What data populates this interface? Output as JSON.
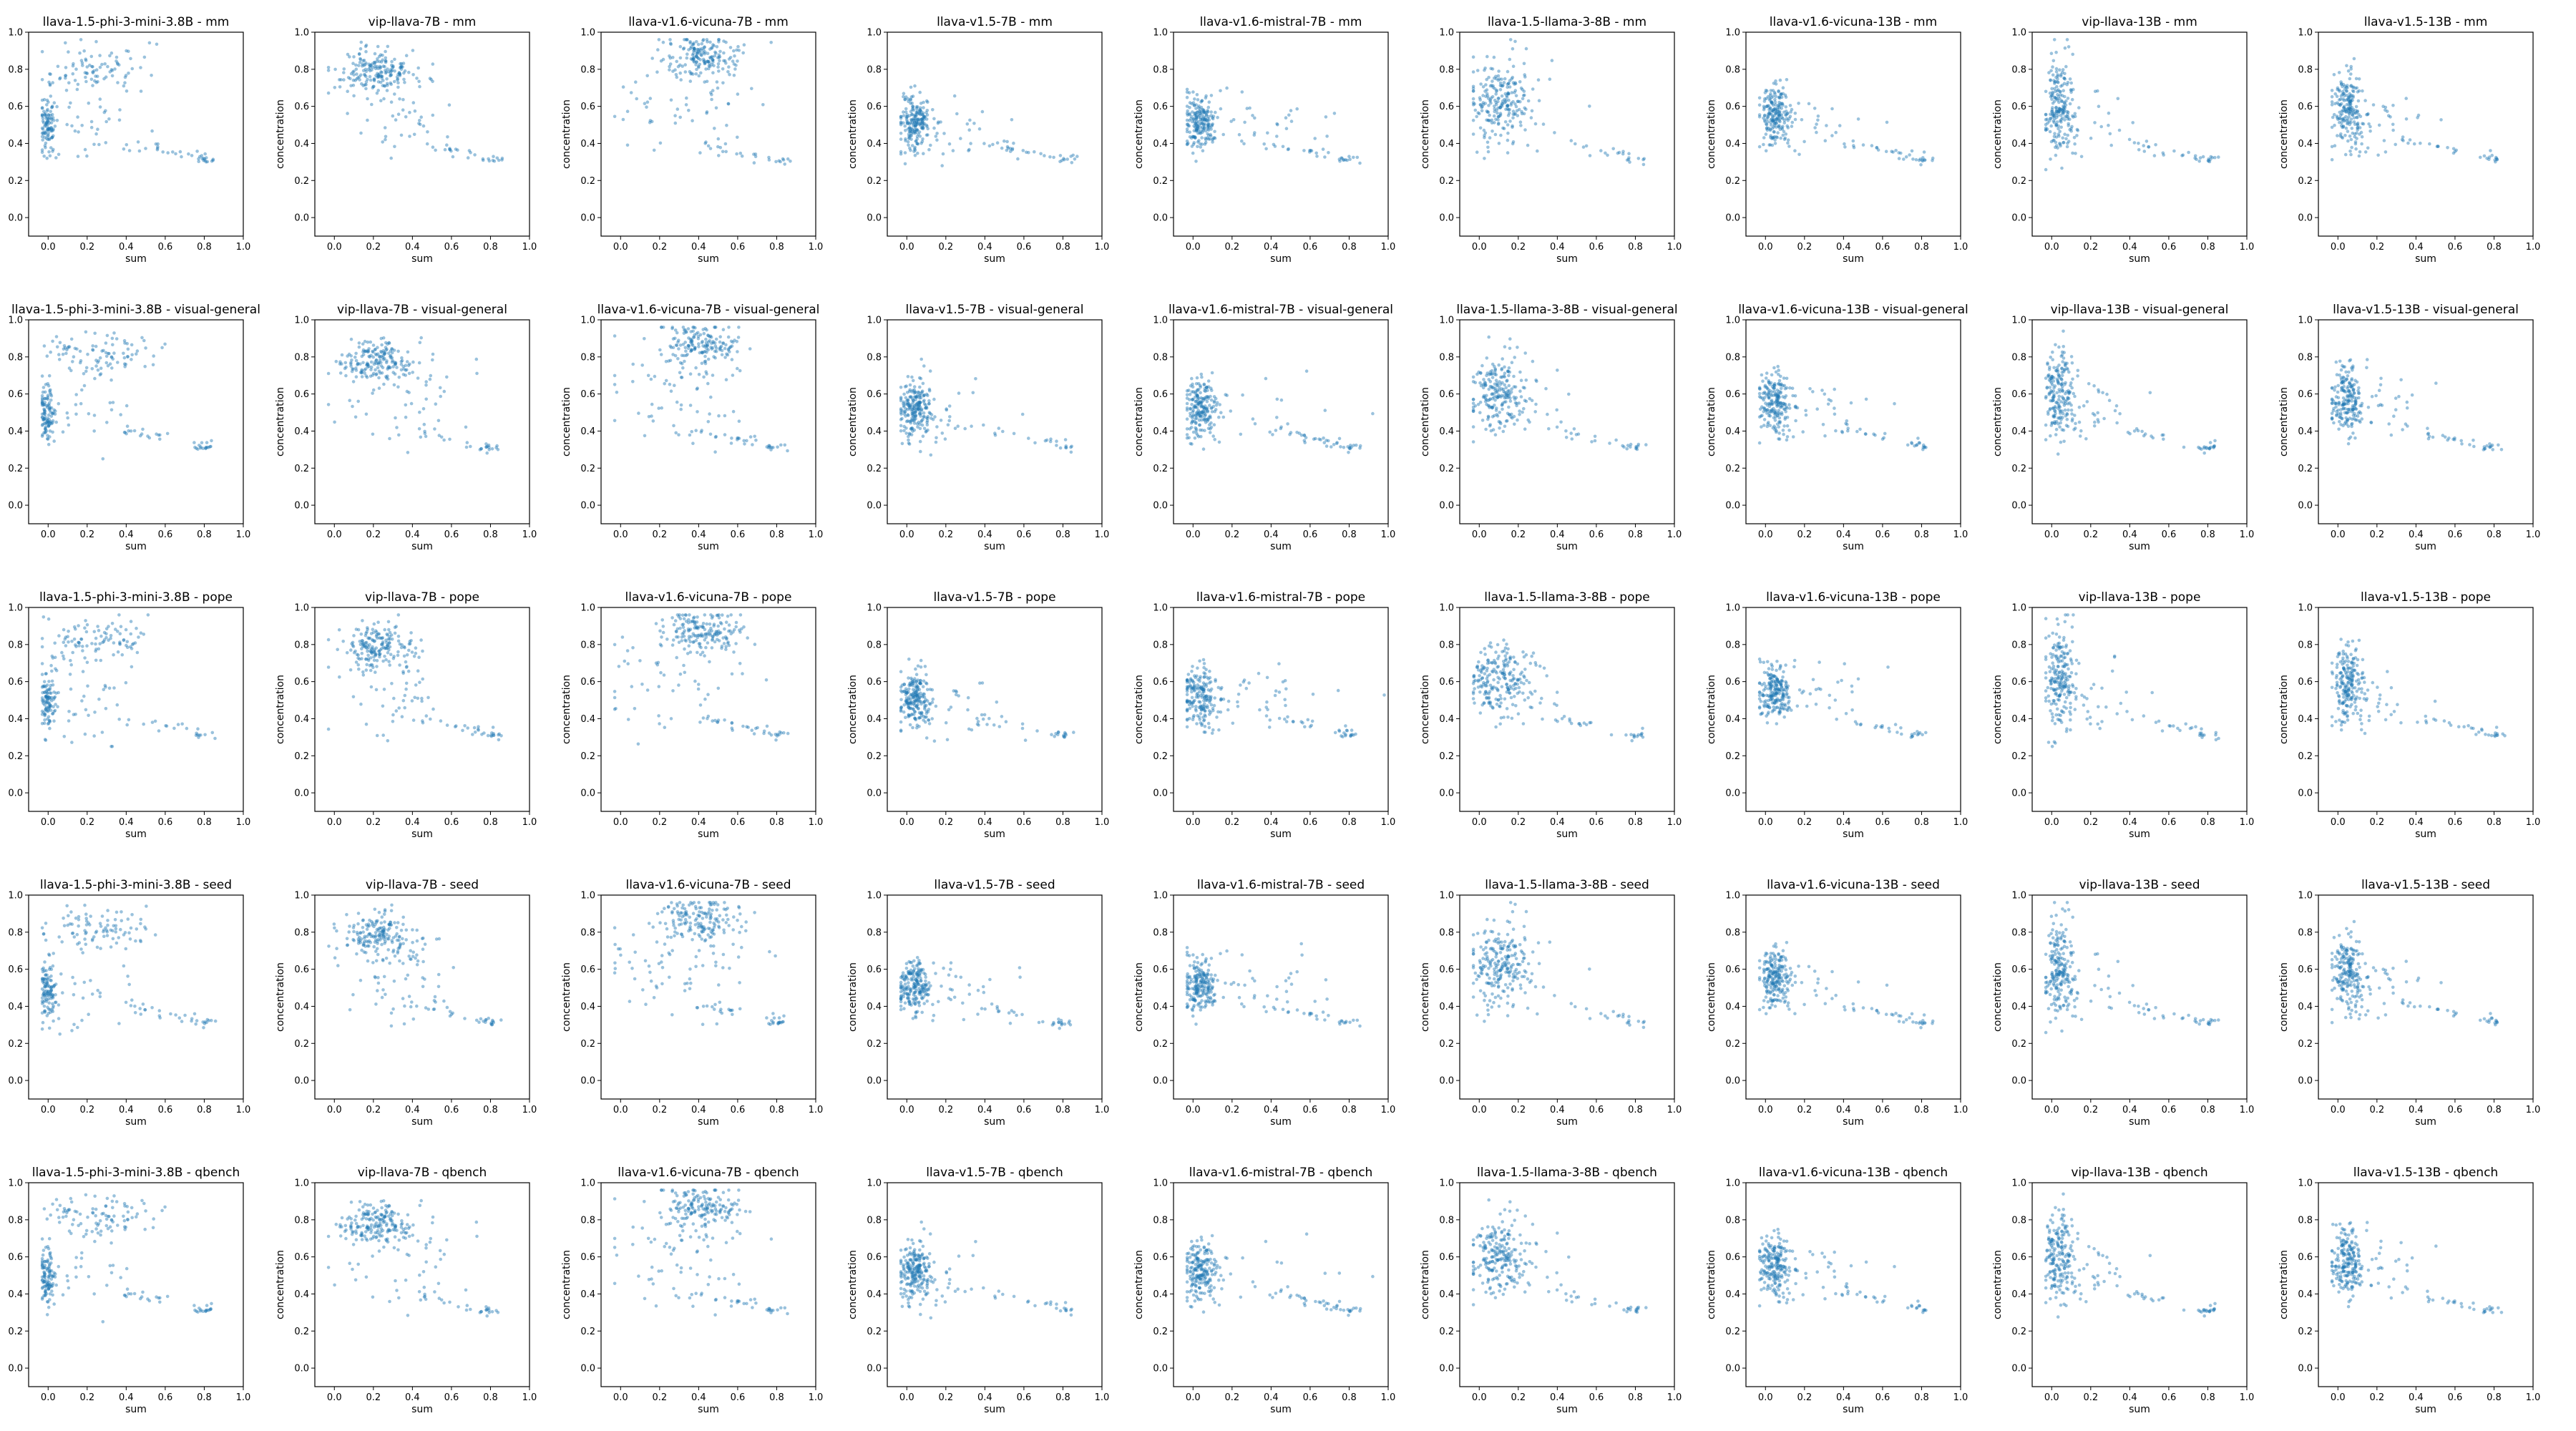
{
  "figure": {
    "models": [
      "llava-1.5-phi-3-mini-3.8B",
      "vip-llava-7B",
      "llava-v1.6-vicuna-7B",
      "llava-v1.5-7B",
      "llava-v1.6-mistral-7B",
      "llava-1.5-llama-3-8B",
      "llava-v1.6-vicuna-13B",
      "vip-llava-13B",
      "llava-v1.5-13B"
    ],
    "datasets": [
      "mm",
      "visual-general",
      "pope",
      "seed",
      "qbench"
    ],
    "title_separator": " - ",
    "point_color": "#1f77b4"
  },
  "chart_data": {
    "type": "scatter",
    "layout": "grid of 5 rows (datasets) x 9 columns (models), one scatter panel per dataset-model pair",
    "xlabel": "sum",
    "ylabel": "concentration",
    "xlim": [
      -0.1,
      1.0
    ],
    "ylim": [
      -0.1,
      1.0
    ],
    "xticks": [
      0.0,
      0.2,
      0.4,
      0.6,
      0.8,
      1.0
    ],
    "yticks": [
      0.0,
      0.2,
      0.4,
      0.6,
      0.8,
      1.0
    ],
    "grid": false,
    "legend": "none",
    "marker": "small translucent circles, single series per panel",
    "panel_clusters": {
      "llava-1.5-phi-3-mini-3.8B": [
        {
          "x": 0.0,
          "y": 0.5,
          "sx": 0.02,
          "sy": 0.08,
          "w": 0.35
        },
        {
          "x": 0.25,
          "y": 0.82,
          "sx": 0.13,
          "sy": 0.06,
          "w": 0.4
        },
        {
          "x": 0.2,
          "y": 0.5,
          "sx": 0.12,
          "sy": 0.12,
          "w": 0.15
        }
      ],
      "vip-llava-7B": [
        {
          "x": 0.22,
          "y": 0.78,
          "sx": 0.09,
          "sy": 0.06,
          "w": 0.8
        },
        {
          "x": 0.35,
          "y": 0.55,
          "sx": 0.15,
          "sy": 0.12,
          "w": 0.2
        }
      ],
      "llava-v1.6-vicuna-7B": [
        {
          "x": 0.42,
          "y": 0.87,
          "sx": 0.1,
          "sy": 0.06,
          "w": 0.7
        },
        {
          "x": 0.3,
          "y": 0.62,
          "sx": 0.18,
          "sy": 0.15,
          "w": 0.3
        }
      ],
      "llava-v1.5-7B": [
        {
          "x": 0.04,
          "y": 0.52,
          "sx": 0.04,
          "sy": 0.07,
          "w": 0.85
        },
        {
          "x": 0.2,
          "y": 0.45,
          "sx": 0.15,
          "sy": 0.08,
          "w": 0.15
        }
      ],
      "llava-v1.6-mistral-7B": [
        {
          "x": 0.04,
          "y": 0.52,
          "sx": 0.04,
          "sy": 0.08,
          "w": 0.8
        },
        {
          "x": 0.3,
          "y": 0.5,
          "sx": 0.25,
          "sy": 0.08,
          "w": 0.2
        }
      ],
      "llava-1.5-llama-3-8B": [
        {
          "x": 0.1,
          "y": 0.62,
          "sx": 0.07,
          "sy": 0.1,
          "w": 0.9
        },
        {
          "x": 0.25,
          "y": 0.55,
          "sx": 0.12,
          "sy": 0.1,
          "w": 0.1
        }
      ],
      "llava-v1.6-vicuna-13B": [
        {
          "x": 0.05,
          "y": 0.55,
          "sx": 0.04,
          "sy": 0.08,
          "w": 0.85
        },
        {
          "x": 0.25,
          "y": 0.52,
          "sx": 0.15,
          "sy": 0.08,
          "w": 0.15
        }
      ],
      "vip-llava-13B": [
        {
          "x": 0.04,
          "y": 0.62,
          "sx": 0.035,
          "sy": 0.13,
          "w": 0.85
        },
        {
          "x": 0.2,
          "y": 0.5,
          "sx": 0.12,
          "sy": 0.08,
          "w": 0.15
        }
      ],
      "llava-v1.5-13B": [
        {
          "x": 0.05,
          "y": 0.58,
          "sx": 0.04,
          "sy": 0.1,
          "w": 0.85
        },
        {
          "x": 0.2,
          "y": 0.5,
          "sx": 0.12,
          "sy": 0.08,
          "w": 0.15
        }
      ]
    },
    "tail": {
      "x_start": 0.4,
      "x_end": 0.85,
      "y_start": 0.4,
      "y_end": 0.31,
      "end_cluster": [
        0.8,
        0.31
      ]
    },
    "points_per_panel": 260
  }
}
